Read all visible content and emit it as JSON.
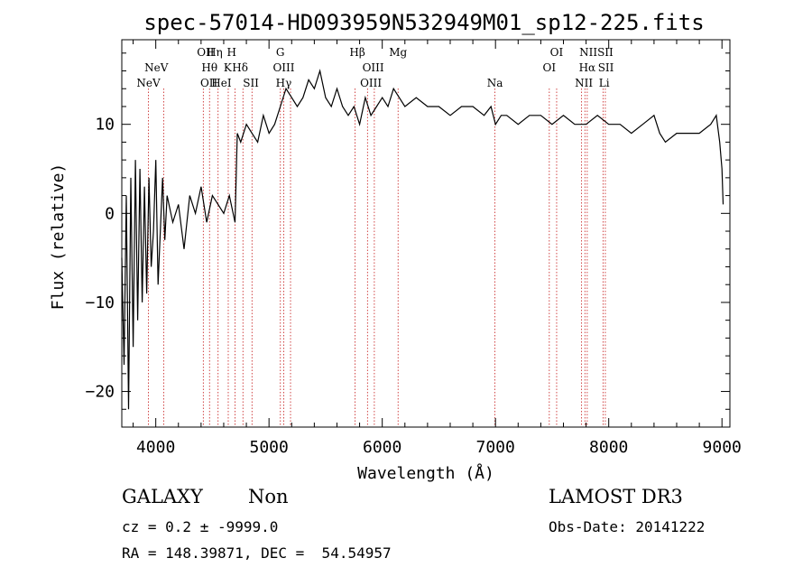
{
  "chart_data": {
    "type": "line",
    "title": "spec-57014-HD093959N532949M01_sp12-225.fits",
    "xlabel": "Wavelength (Å)",
    "ylabel": "Flux (relative)",
    "xlim": [
      3700,
      9070
    ],
    "ylim": [
      -24,
      19.5
    ],
    "xticks": [
      4000,
      5000,
      6000,
      7000,
      8000,
      9000
    ],
    "yticks": [
      -20,
      -10,
      0,
      10
    ],
    "grid": false,
    "series": [
      {
        "name": "flux",
        "x": [
          3700,
          3720,
          3740,
          3760,
          3780,
          3800,
          3820,
          3840,
          3860,
          3880,
          3900,
          3920,
          3940,
          3960,
          3980,
          4000,
          4020,
          4040,
          4060,
          4080,
          4100,
          4150,
          4200,
          4250,
          4300,
          4350,
          4400,
          4450,
          4500,
          4550,
          4600,
          4650,
          4700,
          4720,
          4750,
          4800,
          4850,
          4900,
          4950,
          5000,
          5050,
          5100,
          5150,
          5200,
          5250,
          5300,
          5350,
          5400,
          5450,
          5500,
          5550,
          5600,
          5650,
          5700,
          5750,
          5800,
          5850,
          5900,
          5950,
          6000,
          6050,
          6100,
          6150,
          6200,
          6300,
          6400,
          6500,
          6600,
          6700,
          6800,
          6900,
          6960,
          7000,
          7050,
          7100,
          7200,
          7300,
          7400,
          7500,
          7600,
          7700,
          7800,
          7900,
          8000,
          8100,
          8200,
          8300,
          8400,
          8450,
          8500,
          8600,
          8700,
          8800,
          8900,
          8950,
          8980,
          9000,
          9010
        ],
        "y": [
          -5,
          -17,
          2,
          -22,
          4,
          -15,
          6,
          -12,
          5,
          -10,
          3,
          -9,
          4,
          -6,
          -2,
          6,
          -8,
          -2,
          4,
          -3,
          2,
          -1,
          1,
          -4,
          2,
          0,
          3,
          -1,
          2,
          1,
          0,
          2,
          -1,
          9,
          8,
          10,
          9,
          8,
          11,
          9,
          10,
          12,
          14,
          13,
          12,
          13,
          15,
          14,
          16,
          13,
          12,
          14,
          12,
          11,
          12,
          10,
          13,
          11,
          12,
          13,
          12,
          14,
          13,
          12,
          13,
          12,
          12,
          11,
          12,
          12,
          11,
          12,
          10,
          11,
          11,
          10,
          11,
          11,
          10,
          11,
          10,
          10,
          11,
          10,
          10,
          9,
          10,
          11,
          9,
          8,
          9,
          9,
          9,
          10,
          11,
          8,
          5,
          1
        ]
      }
    ],
    "line_markers": [
      {
        "label": "NeV",
        "wavelength": 3935,
        "row": 3
      },
      {
        "label": "NeV",
        "wavelength": 4005,
        "row": 2
      },
      {
        "label": "OII",
        "wavelength": 4440,
        "row": 1
      },
      {
        "label": "Hη",
        "wavelength": 4520,
        "row": 1
      },
      {
        "label": "Hθ",
        "wavelength": 4475,
        "row": 2
      },
      {
        "label": "OII",
        "wavelength": 4470,
        "row": 3
      },
      {
        "label": "HeI",
        "wavelength": 4580,
        "row": 3
      },
      {
        "label": "K",
        "wavelength": 4635,
        "row": 2
      },
      {
        "label": "H",
        "wavelength": 4670,
        "row": 1
      },
      {
        "label": "Hδ",
        "wavelength": 4745,
        "row": 2
      },
      {
        "label": "SII",
        "wavelength": 4840,
        "row": 3
      },
      {
        "label": "G",
        "wavelength": 5100,
        "row": 1
      },
      {
        "label": "OIII",
        "wavelength": 5130,
        "row": 2
      },
      {
        "label": "Hγ",
        "wavelength": 5130,
        "row": 3
      },
      {
        "label": "Hβ",
        "wavelength": 5780,
        "row": 1
      },
      {
        "label": "OIII",
        "wavelength": 5920,
        "row": 2
      },
      {
        "label": "OIII",
        "wavelength": 5900,
        "row": 3
      },
      {
        "label": "Mg",
        "wavelength": 6140,
        "row": 1
      },
      {
        "label": "Na",
        "wavelength": 6995,
        "row": 3
      },
      {
        "label": "OI",
        "wavelength": 7540,
        "row": 1
      },
      {
        "label": "OI",
        "wavelength": 7475,
        "row": 2
      },
      {
        "label": "NII",
        "wavelength": 7820,
        "row": 1
      },
      {
        "label": "Hα",
        "wavelength": 7810,
        "row": 2
      },
      {
        "label": "NII",
        "wavelength": 7780,
        "row": 3
      },
      {
        "label": "SII",
        "wavelength": 7970,
        "row": 1
      },
      {
        "label": "SII",
        "wavelength": 7975,
        "row": 2
      },
      {
        "label": "Li",
        "wavelength": 7960,
        "row": 3
      }
    ],
    "marker_lines": [
      3935,
      4070,
      4420,
      4475,
      4550,
      4640,
      4700,
      4770,
      4850,
      5100,
      5130,
      5190,
      5760,
      5870,
      5930,
      6140,
      6995,
      7475,
      7540,
      7760,
      7790,
      7810,
      7950,
      7970
    ],
    "colors": {
      "axis": "#000000",
      "series": "#000000",
      "markers": "#cc3333"
    }
  },
  "info": {
    "object_class": "GALAXY",
    "subclass": "Non",
    "survey": "LAMOST DR3",
    "cz": "cz = 0.2 ± -9999.0",
    "obs_date": "Obs-Date: 20141222",
    "coords": "RA = 148.39871, DEC =  54.54957"
  }
}
